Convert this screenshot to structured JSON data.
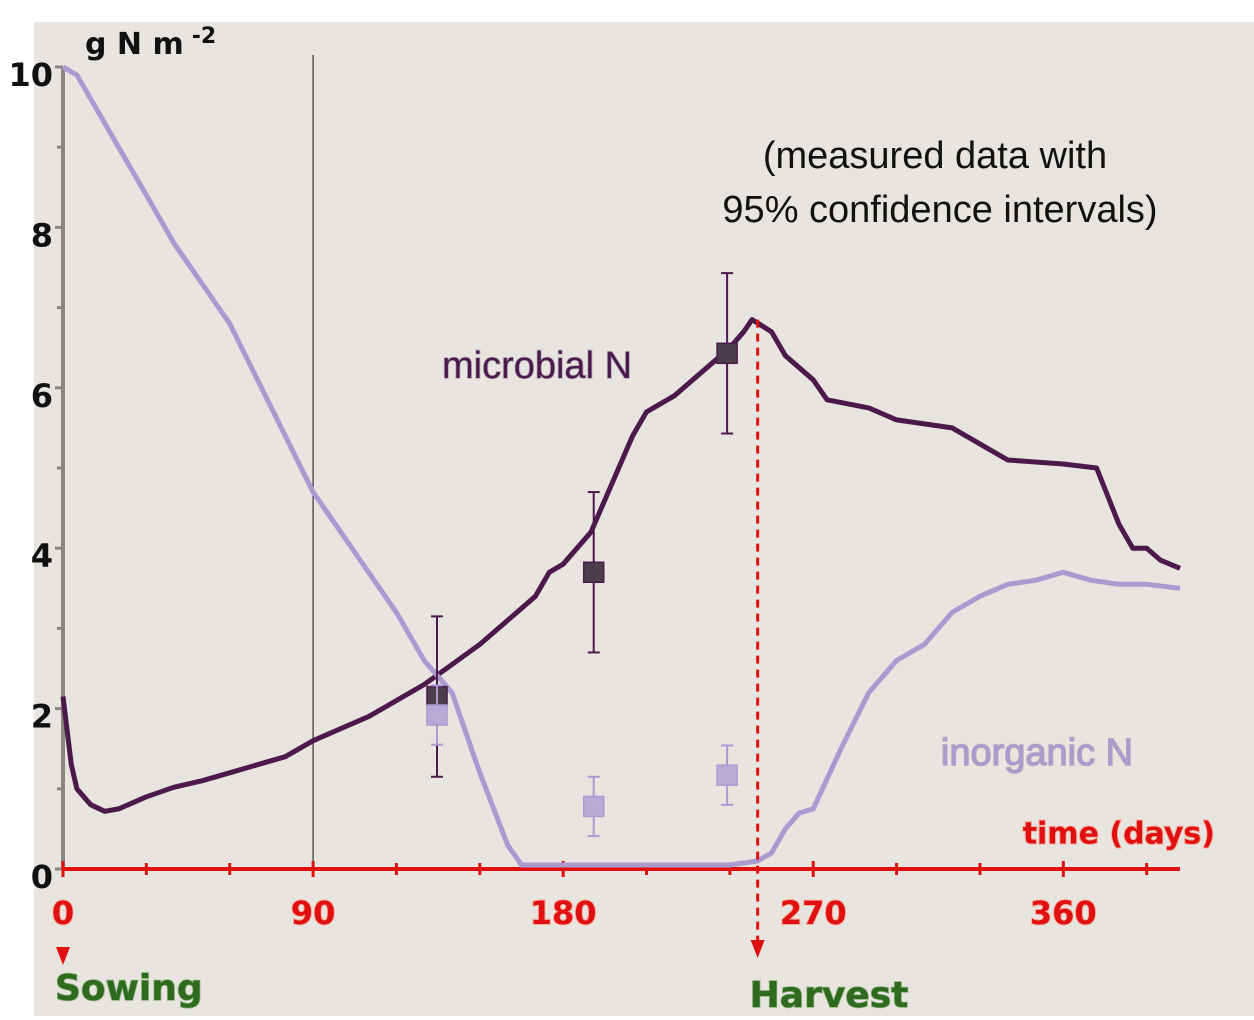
{
  "chart_data": {
    "type": "line",
    "y_label": "g N m",
    "y_label_sup": "-2",
    "x_label": "time (days)",
    "annotation": [
      "(measured data with",
      "95% confidence intervals)"
    ],
    "xlim": [
      0,
      402
    ],
    "ylim": [
      0,
      10
    ],
    "xticks": [
      0,
      90,
      180,
      270,
      360
    ],
    "xminor_ticks": [
      30,
      60,
      120,
      150,
      210,
      240,
      300,
      330,
      390
    ],
    "yticks": [
      0,
      2,
      4,
      6,
      8,
      10
    ],
    "yminor_ticks": [
      1,
      3,
      5,
      7,
      9
    ],
    "reference_line_x": 90,
    "events": [
      {
        "label": "Sowing",
        "x": 0
      },
      {
        "label": "Harvest",
        "x": 250
      }
    ],
    "series": [
      {
        "name": "microbial N",
        "color": "#4b1a4b",
        "marker_color": "#4a3e4a",
        "x": [
          0,
          3,
          5,
          10,
          15,
          20,
          30,
          40,
          50,
          60,
          70,
          80,
          90,
          100,
          110,
          120,
          130,
          140,
          150,
          160,
          170,
          175,
          180,
          190,
          195,
          200,
          205,
          210,
          220,
          230,
          240,
          245,
          248,
          255,
          260,
          270,
          275,
          290,
          300,
          320,
          330,
          340,
          360,
          372,
          380,
          385,
          390,
          395,
          402
        ],
        "values": [
          2.15,
          1.3,
          1.0,
          0.8,
          0.72,
          0.75,
          0.9,
          1.02,
          1.1,
          1.2,
          1.3,
          1.4,
          1.6,
          1.75,
          1.9,
          2.1,
          2.3,
          2.55,
          2.8,
          3.1,
          3.4,
          3.7,
          3.8,
          4.2,
          4.6,
          5.0,
          5.4,
          5.7,
          5.9,
          6.2,
          6.5,
          6.7,
          6.85,
          6.7,
          6.4,
          6.1,
          5.85,
          5.75,
          5.6,
          5.5,
          5.3,
          5.1,
          5.05,
          5.0,
          4.3,
          4.0,
          4.0,
          3.85,
          3.75
        ],
        "points": {
          "x": [
            134.6,
            191,
            239
          ],
          "values": [
            2.15,
            3.7,
            6.43
          ],
          "errors": [
            1.0,
            1.0,
            1.0
          ]
        }
      },
      {
        "name": "inorganic N",
        "color": "#a99bd0",
        "marker_color": "#b7abd6",
        "x": [
          0,
          5,
          10,
          20,
          30,
          40,
          50,
          60,
          70,
          80,
          90,
          100,
          110,
          120,
          130,
          140,
          150,
          160,
          165,
          180,
          200,
          220,
          240,
          250,
          255,
          260,
          265,
          270,
          280,
          290,
          300,
          310,
          320,
          330,
          340,
          350,
          360,
          370,
          380,
          390,
          402
        ],
        "values": [
          10,
          9.9,
          9.6,
          9.0,
          8.4,
          7.8,
          7.3,
          6.8,
          6.1,
          5.4,
          4.7,
          4.2,
          3.7,
          3.2,
          2.6,
          2.2,
          1.2,
          0.3,
          0.05,
          0.05,
          0.05,
          0.05,
          0.05,
          0.1,
          0.2,
          0.5,
          0.7,
          0.75,
          1.5,
          2.2,
          2.6,
          2.8,
          3.2,
          3.4,
          3.55,
          3.6,
          3.7,
          3.6,
          3.55,
          3.55,
          3.5
        ],
        "points": {
          "x": [
            134.6,
            191,
            239
          ],
          "values": [
            1.92,
            0.78,
            1.17
          ],
          "errors": [
            0.37,
            0.37,
            0.37
          ]
        }
      }
    ]
  }
}
